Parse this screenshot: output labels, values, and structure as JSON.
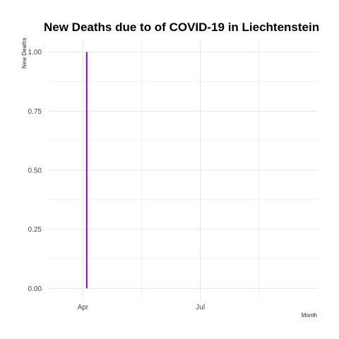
{
  "chart_data": {
    "type": "line",
    "title": "New Deaths due to of COVID-19 in Liechtenstein",
    "xlabel": "Month",
    "ylabel": "New Deaths",
    "x_tick_labels": [
      "Apr",
      "Jul"
    ],
    "x_ticks": [
      "2020-04-01",
      "2020-07-01"
    ],
    "xlim": [
      "2020-03-05",
      "2020-09-30"
    ],
    "y_ticks": [
      0,
      0.25,
      0.5,
      0.75,
      1
    ],
    "y_tick_labels": [
      "0.00",
      "0.25",
      "0.50",
      "0.75",
      "1.00"
    ],
    "ylim": [
      -0.05,
      1.05
    ],
    "grid": true,
    "series": [
      {
        "x": [
          "2020-04-04",
          "2020-04-04"
        ],
        "values": [
          0,
          1
        ],
        "color": "#8a00d4"
      }
    ]
  }
}
